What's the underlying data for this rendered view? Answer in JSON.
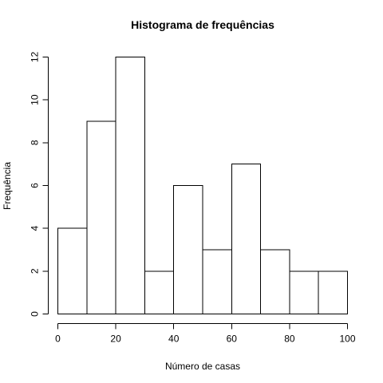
{
  "chart_data": {
    "type": "bar",
    "title": "Histograma de frequências",
    "xlabel": "Número de casas",
    "ylabel": "Frequência",
    "bins": [
      {
        "from": 0,
        "to": 10,
        "count": 4
      },
      {
        "from": 10,
        "to": 20,
        "count": 9
      },
      {
        "from": 20,
        "to": 30,
        "count": 12
      },
      {
        "from": 30,
        "to": 40,
        "count": 2
      },
      {
        "from": 40,
        "to": 50,
        "count": 6
      },
      {
        "from": 50,
        "to": 60,
        "count": 3
      },
      {
        "from": 60,
        "to": 70,
        "count": 7
      },
      {
        "from": 70,
        "to": 80,
        "count": 3
      },
      {
        "from": 80,
        "to": 90,
        "count": 2
      },
      {
        "from": 90,
        "to": 100,
        "count": 2
      }
    ],
    "x_ticks": [
      0,
      20,
      40,
      60,
      80,
      100
    ],
    "y_ticks": [
      0,
      2,
      4,
      6,
      8,
      10,
      12
    ],
    "xlim": [
      0,
      100
    ],
    "ylim": [
      0,
      12
    ],
    "grid": false,
    "bar_fill": "#ffffff",
    "bar_stroke": "#000000"
  }
}
